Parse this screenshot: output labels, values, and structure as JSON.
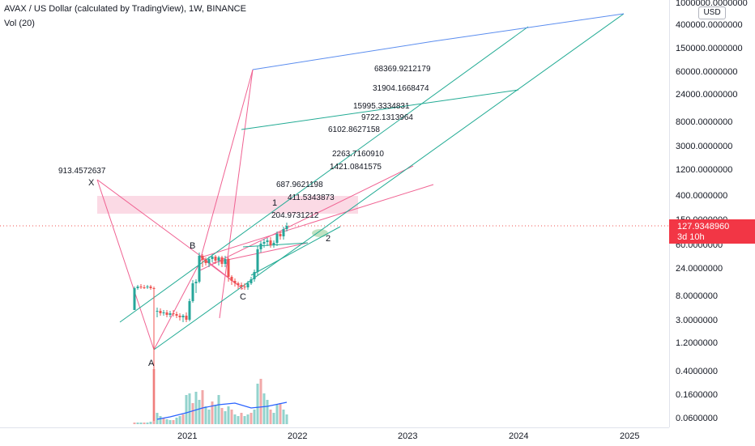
{
  "header": {
    "title": "AVAX / US Dollar (calculated by TradingView), 1W, BINANCE",
    "indicator": "Vol (20)"
  },
  "price_axis": {
    "currency": "USD",
    "labels": [
      "1000000.0000000",
      "400000.0000000",
      "150000.0000000",
      "60000.0000000",
      "24000.0000000",
      "8000.0000000",
      "3000.0000000",
      "1200.0000000",
      "400.0000000",
      "150.0000000",
      "60.0000000",
      "24.0000000",
      "8.0000000",
      "3.0000000",
      "1.2000000",
      "0.4000000",
      "0.1600000",
      "0.0600000"
    ]
  },
  "current_price": {
    "value": "127.9348960",
    "countdown": "3d 10h",
    "color": "#f23645"
  },
  "time_axis": {
    "labels": [
      "2021",
      "2022",
      "2023",
      "2024",
      "2025"
    ]
  },
  "annotations": {
    "fib_levels": [
      "68369.9212179",
      "31904.1668474",
      "15995.3334831",
      "9722.1313964",
      "6102.8627158",
      "2263.7160910",
      "1421.0841575",
      "687.9621198",
      "411.5343873",
      "204.9731212"
    ],
    "x_value": "913.4572637",
    "points": [
      "X",
      "A",
      "B",
      "C",
      "1",
      "2"
    ]
  },
  "colors": {
    "up": "#26a69a",
    "down": "#ef5350",
    "pink_lines": "#f06292",
    "channel": "#22ab94",
    "blue_line": "#5b8def",
    "zone": "#f8bbd0",
    "volume_ma": "#2962ff"
  },
  "chart_data": {
    "type": "candlestick",
    "title": "AVAX / US Dollar (calculated by TradingView), 1W, BINANCE",
    "ylabel_scale": "log",
    "ylim": [
      0.05,
      1200000
    ],
    "x_ticks": [
      "2021",
      "2022",
      "2023",
      "2024",
      "2025"
    ],
    "series": [
      {
        "name": "Vol (20)",
        "type": "volume"
      }
    ],
    "last_price": 127.934896,
    "fib_extension_levels": [
      68369.9212179,
      31904.1668474,
      15995.3334831,
      9722.1313964,
      6102.8627158,
      2263.716091,
      1421.0841575,
      687.9621198,
      411.5343873,
      204.9731212
    ],
    "x_point_value": 913.4572637
  }
}
